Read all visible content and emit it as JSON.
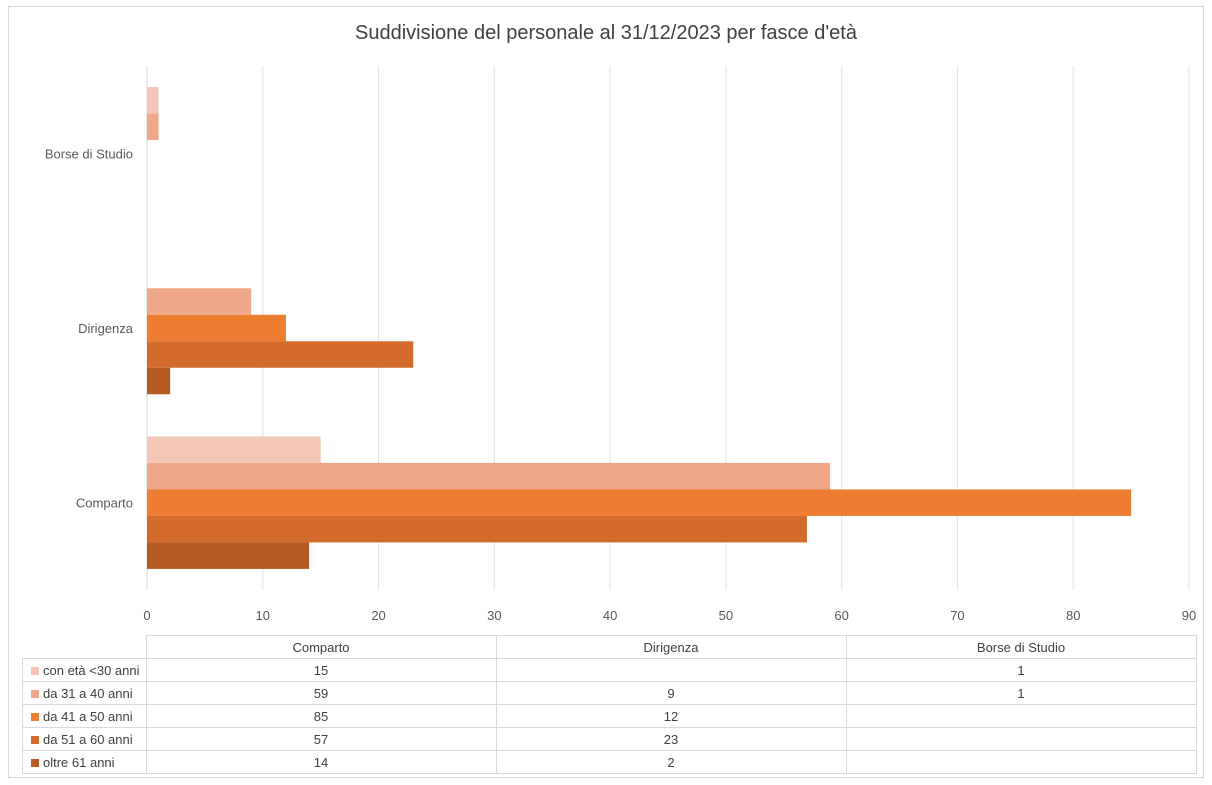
{
  "chart_data": {
    "type": "bar",
    "orientation": "horizontal",
    "title": "Suddivisione del personale al 31/12/2023 per fasce d'età",
    "categories": [
      "Comparto",
      "Dirigenza",
      "Borse di Studio"
    ],
    "series": [
      {
        "name": "con età <30 anni",
        "values": [
          15,
          null,
          1
        ],
        "color": "#f4c6b6"
      },
      {
        "name": "da 31 a 40 anni",
        "values": [
          59,
          9,
          1
        ],
        "color": "#f0a88a"
      },
      {
        "name": "da 41 a 50 anni",
        "values": [
          85,
          12,
          null
        ],
        "color": "#ed7d31"
      },
      {
        "name": "da 51 a 60 anni",
        "values": [
          57,
          23,
          null
        ],
        "color": "#d26b2b"
      },
      {
        "name": "oltre 61 anni",
        "values": [
          14,
          2,
          null
        ],
        "color": "#b55a23"
      }
    ],
    "xlim": [
      0,
      90
    ],
    "xticks": [
      "0",
      "10",
      "20",
      "30",
      "40",
      "50",
      "60",
      "70",
      "80",
      "90"
    ],
    "grid": true,
    "legend": "data-table-below"
  }
}
